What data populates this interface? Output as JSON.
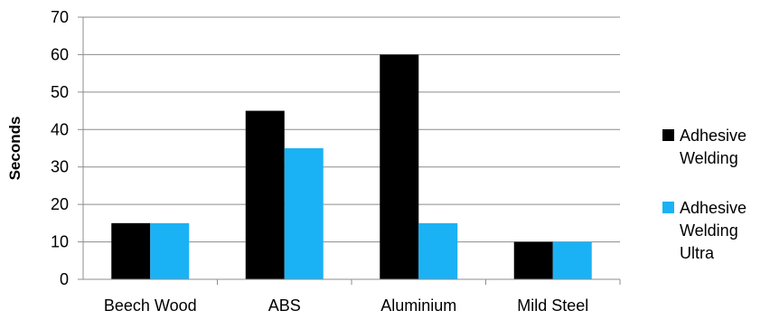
{
  "chart_data": {
    "type": "bar",
    "title": "",
    "xlabel": "",
    "ylabel": "Seconds",
    "categories": [
      "Beech Wood",
      "ABS",
      "Aluminium",
      "Mild Steel"
    ],
    "series": [
      {
        "name": "Adhesive Welding",
        "legend_lines": [
          "Adhesive",
          "Welding"
        ],
        "color": "#000000",
        "values": [
          15,
          45,
          60,
          10
        ]
      },
      {
        "name": "Adhesive Welding Ultra",
        "legend_lines": [
          "Adhesive",
          "Welding",
          "Ultra"
        ],
        "color": "#1AB2F5",
        "values": [
          15,
          35,
          15,
          10
        ]
      }
    ],
    "ylim": [
      0,
      70
    ],
    "yticks": [
      0,
      10,
      20,
      30,
      40,
      50,
      60,
      70
    ],
    "grid": true,
    "legend_position": "right"
  }
}
